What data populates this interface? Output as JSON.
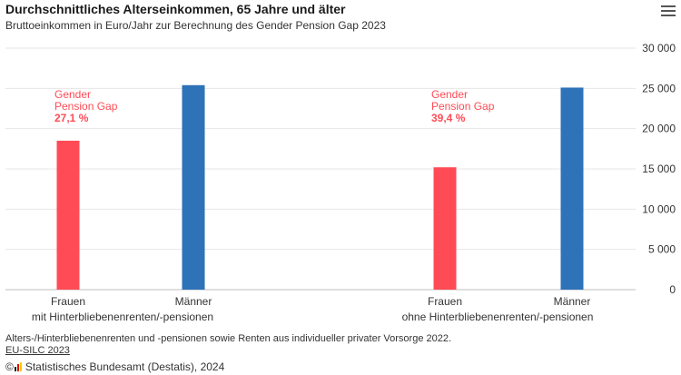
{
  "header": {
    "title": "Durchschnittliches Alterseinkommen, 65 Jahre und älter",
    "subtitle": "Bruttoeinkommen in Euro/Jahr zur Berechnung des Gender Pension Gap 2023",
    "menu_icon": "hamburger-menu-icon"
  },
  "chart_data": {
    "type": "bar",
    "ylim": [
      0,
      30000
    ],
    "yticks": [
      0,
      5000,
      10000,
      15000,
      20000,
      25000,
      30000
    ],
    "ytick_labels": [
      "0",
      "5 000",
      "10 000",
      "15 000",
      "20 000",
      "25 000",
      "30 000"
    ],
    "grid": true,
    "groups": [
      {
        "label": "mit Hinterbliebenenrenten/-pensionen",
        "bars": [
          {
            "category": "Frauen",
            "value": 18500,
            "color": "#ff4b55"
          },
          {
            "category": "Männer",
            "value": 25400,
            "color": "#2e72b8"
          }
        ],
        "annotation": [
          "Gender",
          "Pension Gap",
          "27,1 %"
        ]
      },
      {
        "label": "ohne Hinterbliebenenrenten/-pensionen",
        "bars": [
          {
            "category": "Frauen",
            "value": 15200,
            "color": "#ff4b55"
          },
          {
            "category": "Männer",
            "value": 25100,
            "color": "#2e72b8"
          }
        ],
        "annotation": [
          "Gender",
          "Pension Gap",
          "39,4 %"
        ]
      }
    ],
    "annotation_color": "#ff4b55"
  },
  "footer": {
    "note": "Alters-/Hinterbliebenenrenten und -pensionen sowie Renten aus individueller privater Vorsorge 2022.",
    "source": "EU-SILC 2023",
    "copyright": "© ",
    "publisher": "Statistisches Bundesamt (Destatis), 2024",
    "logo_colors": [
      "#1a1a1a",
      "#e30613",
      "#ffcc00"
    ]
  }
}
